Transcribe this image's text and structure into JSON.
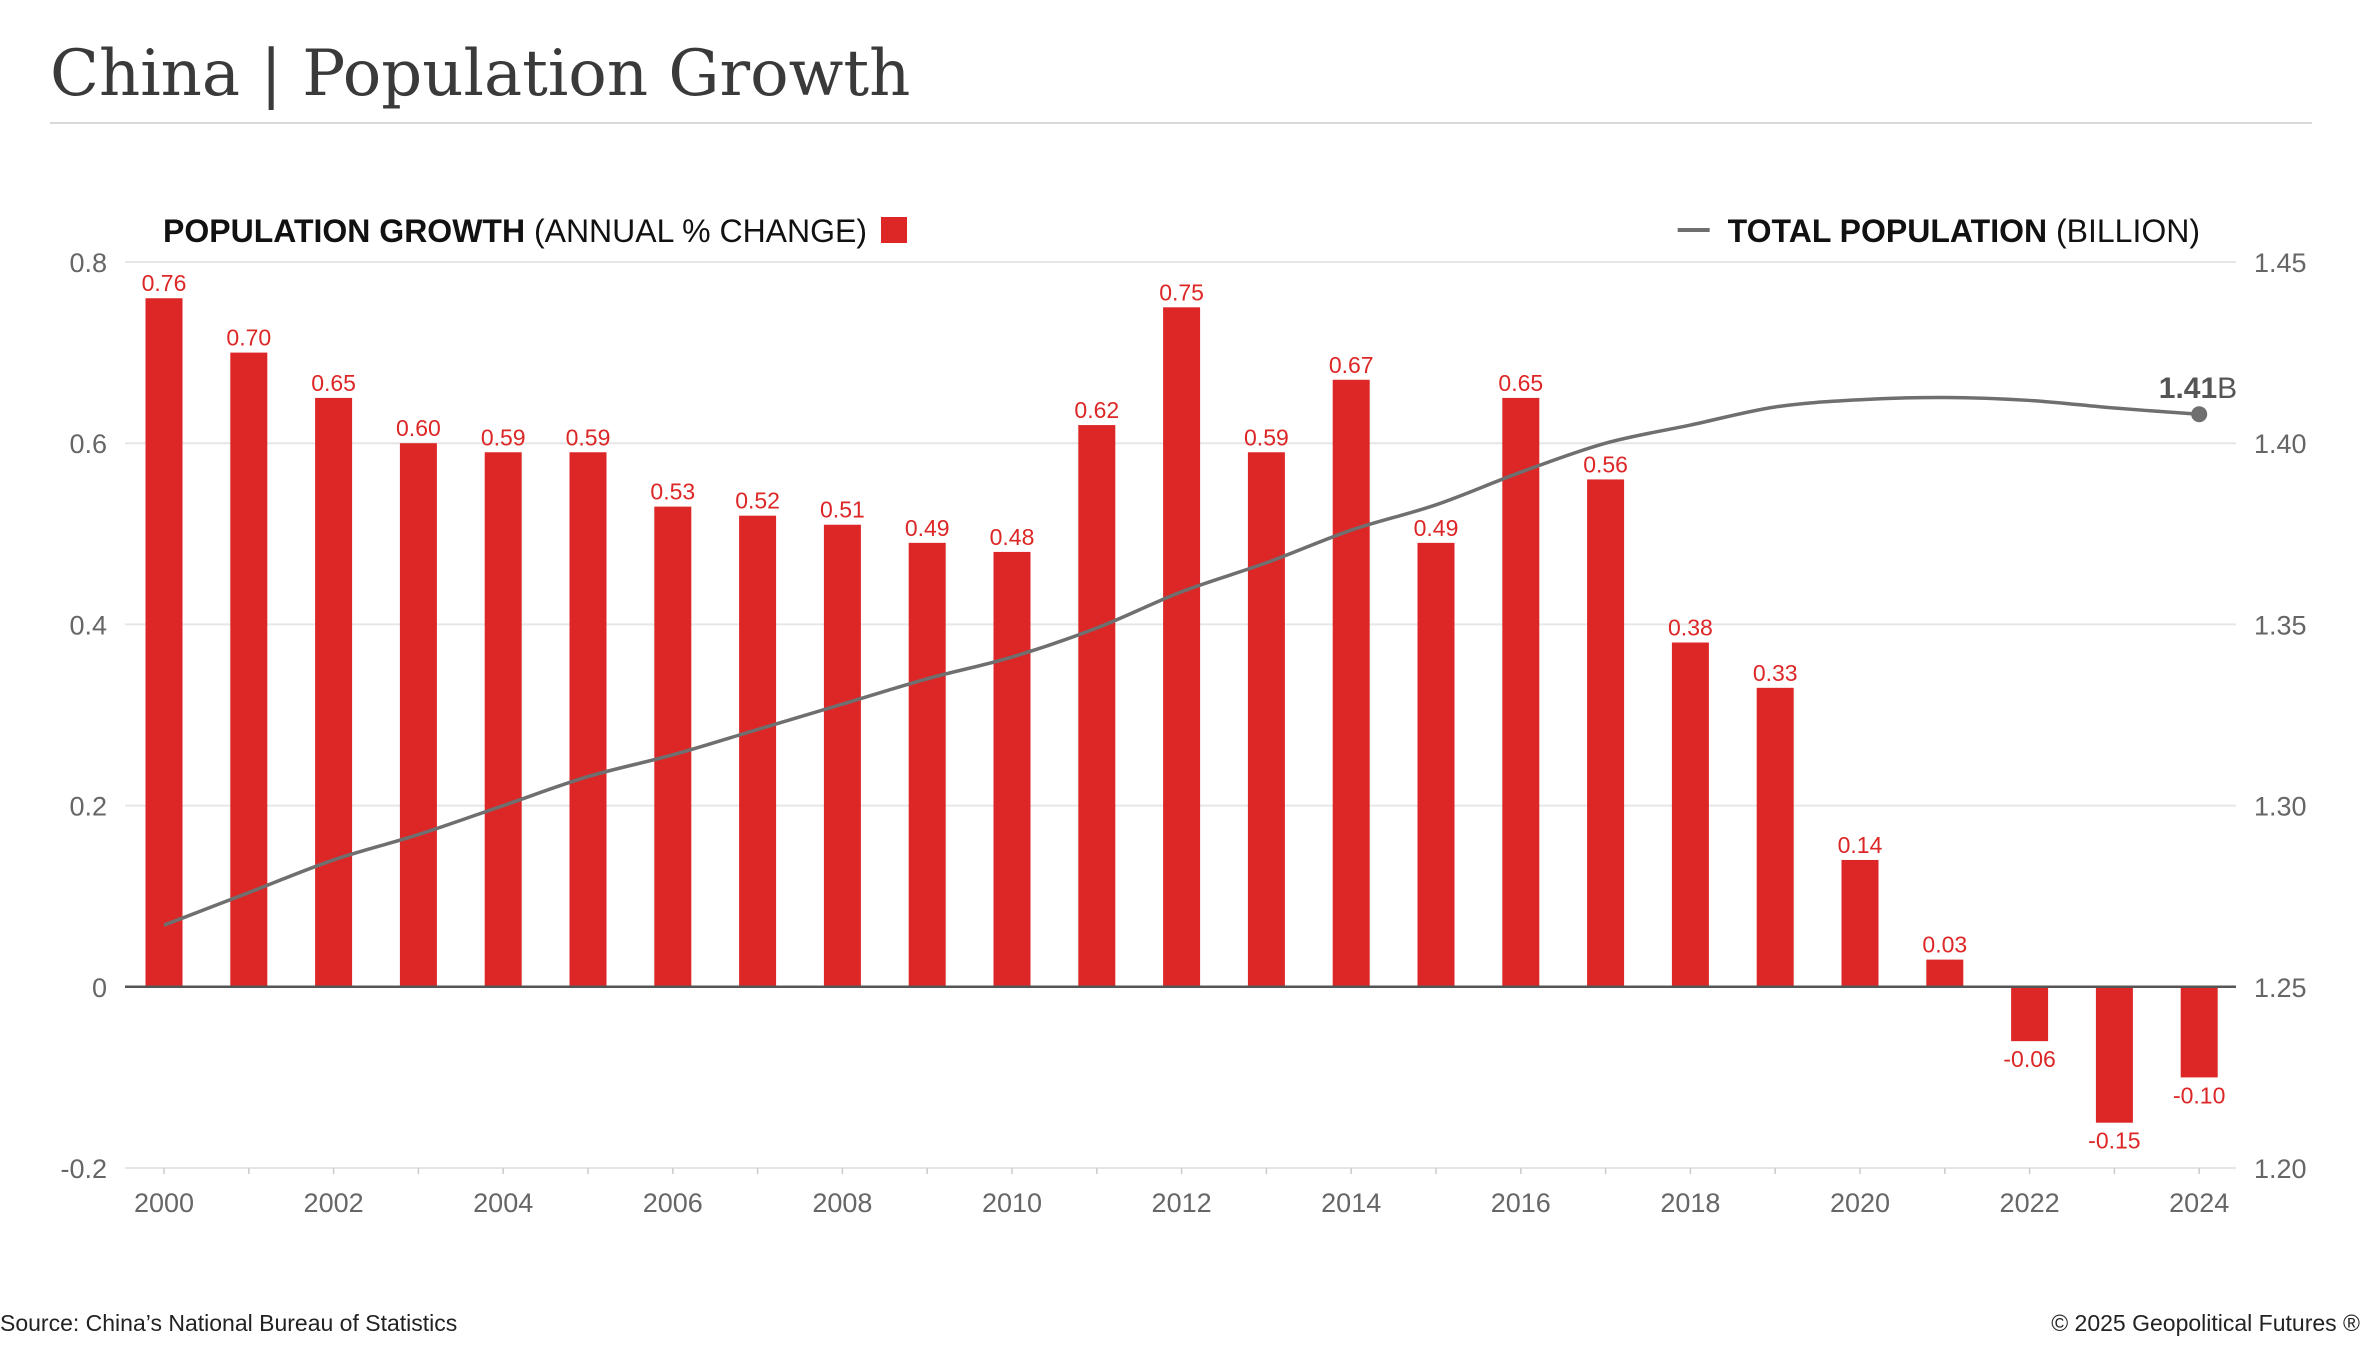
{
  "title": "China | Population Growth",
  "footer": {
    "source": "Source: China’s National Bureau of Statistics",
    "copyright": "© 2025 Geopolitical Futures ®"
  },
  "colors": {
    "bar": "#dd2626",
    "line": "#6f6f6f",
    "grid": "#e6e6e6",
    "axis_text": "#666666",
    "legend_text": "#111111"
  },
  "chart_data": {
    "type": "bar",
    "legend": {
      "bars_bold": "POPULATION GROWTH",
      "bars_rest": " (ANNUAL % CHANGE)",
      "line_bold": "TOTAL POPULATION",
      "line_rest": " (BILLION)"
    },
    "x": [
      2000,
      2001,
      2002,
      2003,
      2004,
      2005,
      2006,
      2007,
      2008,
      2009,
      2010,
      2011,
      2012,
      2013,
      2014,
      2015,
      2016,
      2017,
      2018,
      2019,
      2020,
      2021,
      2022,
      2023,
      2024
    ],
    "x_tick_labels": [
      "2000",
      "2002",
      "2004",
      "2006",
      "2008",
      "2010",
      "2012",
      "2014",
      "2016",
      "2018",
      "2020",
      "2022",
      "2024"
    ],
    "series": [
      {
        "name": "POPULATION GROWTH (ANNUAL % CHANGE)",
        "type": "bar",
        "axis": "left",
        "values": [
          0.76,
          0.7,
          0.65,
          0.6,
          0.59,
          0.59,
          0.53,
          0.52,
          0.51,
          0.49,
          0.48,
          0.62,
          0.75,
          0.59,
          0.67,
          0.49,
          0.65,
          0.56,
          0.38,
          0.33,
          0.14,
          0.03,
          -0.06,
          -0.15,
          -0.1
        ],
        "labels": [
          "0.76",
          "0.70",
          "0.65",
          "0.60",
          "0.59",
          "0.59",
          "0.53",
          "0.52",
          "0.51",
          "0.49",
          "0.48",
          "0.62",
          "0.75",
          "0.59",
          "0.67",
          "0.49",
          "0.65",
          "0.56",
          "0.38",
          "0.33",
          "0.14",
          "0.03",
          "-0.06",
          "-0.15",
          "-0.10"
        ]
      },
      {
        "name": "TOTAL POPULATION (BILLION)",
        "type": "line",
        "axis": "right",
        "values": [
          1.267,
          1.276,
          1.285,
          1.292,
          1.3,
          1.308,
          1.314,
          1.321,
          1.328,
          1.335,
          1.341,
          1.349,
          1.359,
          1.367,
          1.376,
          1.383,
          1.392,
          1.4,
          1.405,
          1.41,
          1.412,
          1.4126,
          1.4118,
          1.4097,
          1.408
        ],
        "end_label_value": "1.41",
        "end_label_unit": "B"
      }
    ],
    "left_axis": {
      "ylim": [
        -0.2,
        0.8
      ],
      "ticks": [
        -0.2,
        0,
        0.2,
        0.4,
        0.6,
        0.8
      ],
      "tick_labels": [
        "-0.2",
        "0",
        "0.2",
        "0.4",
        "0.6",
        "0.8"
      ]
    },
    "right_axis": {
      "ylim": [
        1.2,
        1.45
      ],
      "ticks": [
        1.2,
        1.25,
        1.3,
        1.35,
        1.4,
        1.45
      ],
      "tick_labels": [
        "1.20",
        "1.25",
        "1.30",
        "1.35",
        "1.40",
        "1.45"
      ]
    },
    "grid": true,
    "legend_placement": "top"
  }
}
